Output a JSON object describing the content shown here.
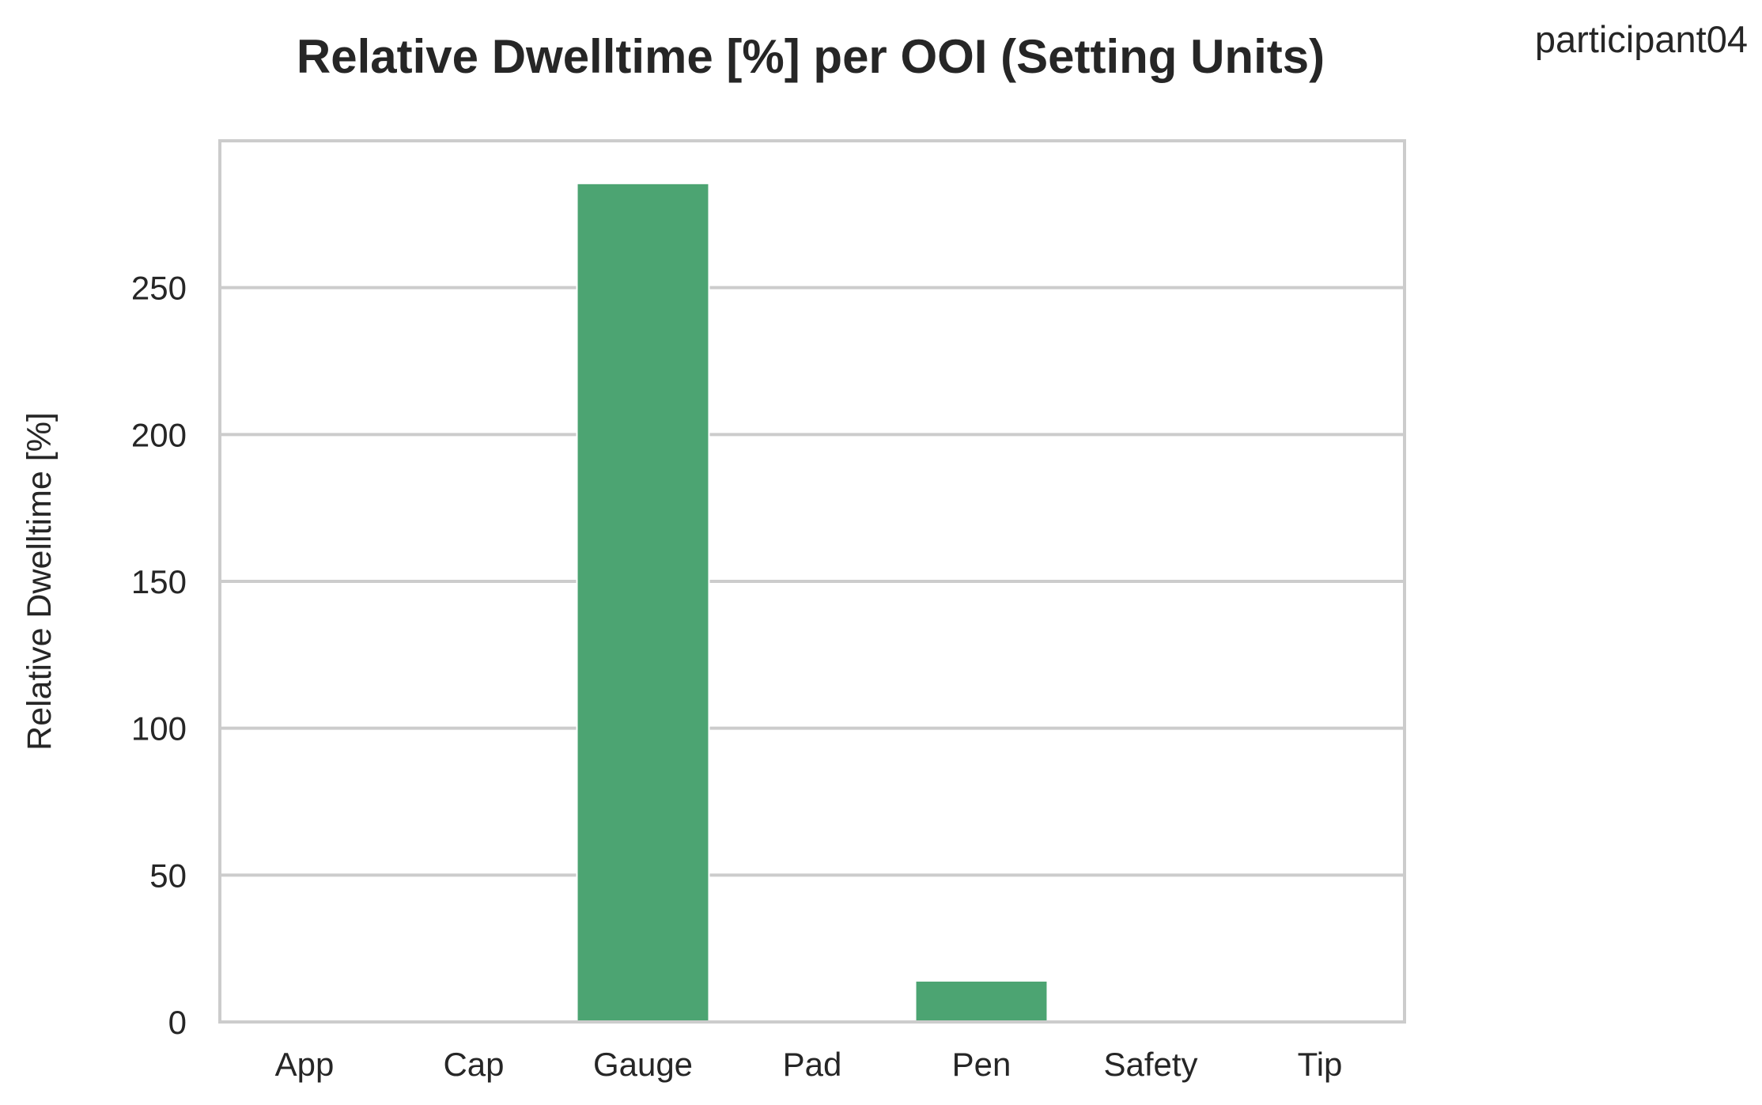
{
  "participant_label": "participant04",
  "chart_data": {
    "type": "bar",
    "title": "Relative Dwelltime [%] per OOI (Setting Units)",
    "xlabel": "",
    "ylabel": "Relative Dwelltime [%]",
    "categories": [
      "App",
      "Cap",
      "Gauge",
      "Pad",
      "Pen",
      "Safety",
      "Tip"
    ],
    "values": [
      0,
      0,
      285.5,
      0,
      14,
      0,
      0
    ],
    "ylim": [
      0,
      300
    ],
    "yticks": [
      0,
      50,
      100,
      150,
      200,
      250
    ],
    "ytick_labels": [
      "0",
      "50",
      "100",
      "150",
      "200",
      "250"
    ],
    "grid": true,
    "bar_color": "#4ca472",
    "grid_color": "#cccccc"
  }
}
